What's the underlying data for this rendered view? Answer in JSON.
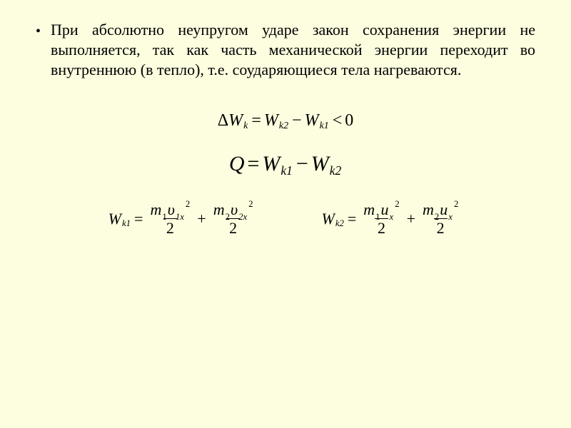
{
  "slide": {
    "background": "#fdfddf",
    "text_color": "#000000",
    "font_family": "Times New Roman"
  },
  "bullet": {
    "glyph": "•",
    "text": "При абсолютно неупругом ударе закон сохранения энергии не выполняется, так как часть механической энергии переходит во внутреннюю (в тепло), т.е. соударяющиеся тела нагреваются.",
    "fontsize_pt": 17,
    "line_height_pt": 21,
    "align": "justify"
  },
  "equations": {
    "eq1": {
      "fontsize_pt": 18,
      "parts": {
        "Delta": "Δ",
        "W": "W",
        "sub_k": "k",
        "eq": "=",
        "sub_k2": "k2",
        "minus": "−",
        "sub_k1": "k1",
        "lt": "<",
        "zero": "0"
      }
    },
    "eq2": {
      "fontsize_pt": 22,
      "parts": {
        "Q": "Q",
        "eq": "=",
        "W": "W",
        "sub_k1": "k1",
        "minus": "−",
        "sub_k2": "k2"
      }
    },
    "eq3": {
      "fontsize_pt": 17,
      "lhs": {
        "W": "W",
        "sub": "k1"
      },
      "eq": "=",
      "term1": {
        "num": {
          "m": "m",
          "m_sub": "1",
          "v": "υ",
          "v_sub": "1x",
          "v_sup": "2"
        },
        "den": "2"
      },
      "plus": "+",
      "term2": {
        "num": {
          "m": "m",
          "m_sub": "2",
          "v": "υ",
          "v_sub": "2x",
          "v_sup": "2"
        },
        "den": "2"
      }
    },
    "eq4": {
      "fontsize_pt": 17,
      "lhs": {
        "W": "W",
        "sub": "k2"
      },
      "eq": "=",
      "term1": {
        "num": {
          "m": "m",
          "m_sub": "1",
          "u": "u",
          "u_sub": "x",
          "u_sup": "2"
        },
        "den": "2"
      },
      "plus": "+",
      "term2": {
        "num": {
          "m": "m",
          "m_sub": "2",
          "u": "u",
          "u_sub": "x",
          "u_sup": "2"
        },
        "den": "2"
      }
    }
  }
}
